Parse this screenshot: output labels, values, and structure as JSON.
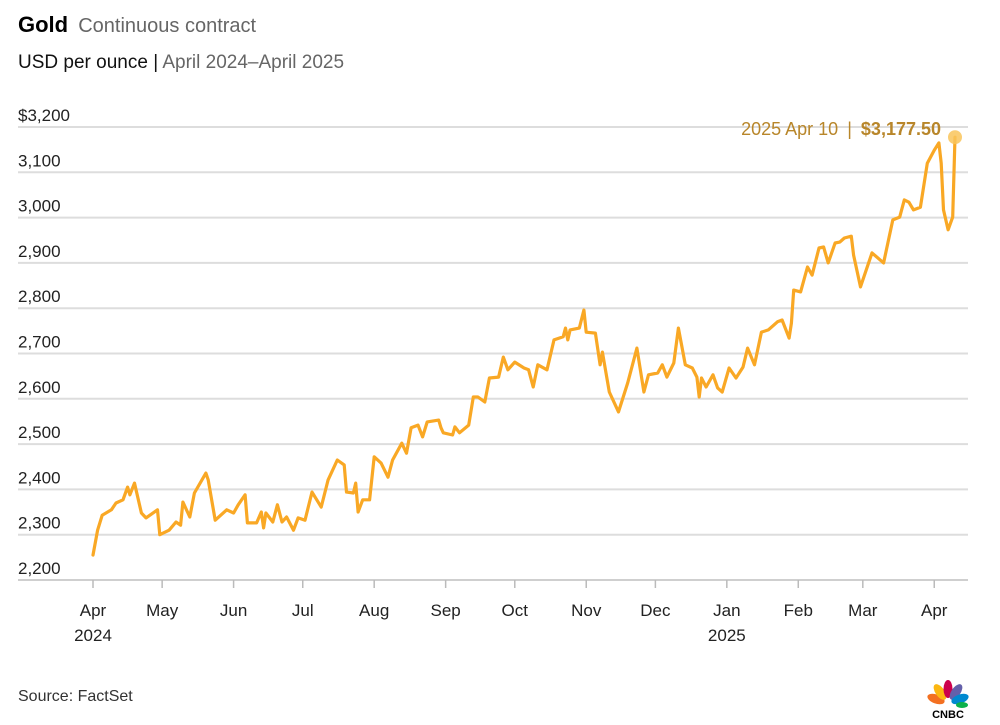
{
  "header": {
    "title": "Gold",
    "subtitle": "Continuous contract",
    "units": "USD per ounce",
    "separator": "|",
    "period": "April 2024–April 2025"
  },
  "source": "Source: FactSet",
  "logo_text": "CNBC",
  "colors": {
    "line": "#F9A825",
    "annotation": "#B8862A",
    "grid": "#DDDDDD",
    "marker": "#F9C45A"
  },
  "chart_data": {
    "type": "line",
    "title": "Gold Continuous contract",
    "ylabel": "USD per ounce",
    "xlabel": "",
    "x_unit": "days since 2024-04-01",
    "xlim": [
      0,
      374
    ],
    "ylim": [
      2200,
      3200
    ],
    "grid": true,
    "y_ticks": [
      {
        "value": 3200,
        "label": "$3,200"
      },
      {
        "value": 3100,
        "label": "3,100"
      },
      {
        "value": 3000,
        "label": "3,000"
      },
      {
        "value": 2900,
        "label": "2,900"
      },
      {
        "value": 2800,
        "label": "2,800"
      },
      {
        "value": 2700,
        "label": "2,700"
      },
      {
        "value": 2600,
        "label": "2,600"
      },
      {
        "value": 2500,
        "label": "2,500"
      },
      {
        "value": 2400,
        "label": "2,400"
      },
      {
        "value": 2300,
        "label": "2,300"
      },
      {
        "value": 2200,
        "label": "2,200"
      }
    ],
    "x_ticks": [
      {
        "day": 0,
        "label": "Apr",
        "year": "2024"
      },
      {
        "day": 30,
        "label": "May"
      },
      {
        "day": 61,
        "label": "Jun"
      },
      {
        "day": 91,
        "label": "Jul"
      },
      {
        "day": 122,
        "label": "Aug"
      },
      {
        "day": 153,
        "label": "Sep"
      },
      {
        "day": 183,
        "label": "Oct"
      },
      {
        "day": 214,
        "label": "Nov"
      },
      {
        "day": 244,
        "label": "Dec"
      },
      {
        "day": 275,
        "label": "Jan",
        "year": "2025"
      },
      {
        "day": 306,
        "label": "Feb"
      },
      {
        "day": 334,
        "label": "Mar"
      },
      {
        "day": 365,
        "label": "Apr"
      }
    ],
    "annotation": {
      "date": "2025 Apr 10",
      "separator": "|",
      "value_label": "$3,177.50",
      "day": 374,
      "value": 3177.5
    },
    "series": [
      {
        "name": "Gold",
        "x": [
          0,
          2,
          4,
          8,
          10,
          13,
          15,
          16,
          18,
          21,
          23,
          28,
          29,
          33,
          36,
          38,
          39,
          42,
          44,
          49,
          50,
          53,
          58,
          61,
          63,
          66,
          67,
          71,
          73,
          74,
          75,
          78,
          80,
          82,
          84,
          87,
          89,
          92,
          95,
          99,
          102,
          106,
          109,
          110,
          113,
          114,
          115,
          117,
          120,
          122,
          125,
          128,
          130,
          134,
          136,
          138,
          141,
          143,
          145,
          150,
          151,
          152,
          156,
          157,
          159,
          163,
          165,
          167,
          170,
          172,
          176,
          178,
          180,
          183,
          187,
          189,
          191,
          193,
          197,
          200,
          204,
          205,
          206,
          207,
          211,
          213,
          214,
          218,
          220,
          221,
          224,
          228,
          232,
          236,
          239,
          241,
          245,
          247,
          249,
          252,
          254,
          257,
          260,
          262,
          263,
          264,
          266,
          269,
          271,
          273,
          276,
          279,
          282,
          284,
          287,
          290,
          293,
          297,
          299,
          302,
          303,
          304,
          307,
          310,
          312,
          315,
          317,
          319,
          322,
          324,
          326,
          329,
          330,
          333,
          338,
          343,
          347,
          350,
          352,
          354,
          356,
          359,
          362,
          365,
          367,
          368,
          369,
          371,
          373,
          374
        ],
        "values": [
          2255,
          2310,
          2343,
          2355,
          2370,
          2377,
          2405,
          2388,
          2414,
          2348,
          2337,
          2355,
          2300,
          2310,
          2328,
          2321,
          2372,
          2339,
          2392,
          2436,
          2421,
          2332,
          2355,
          2348,
          2366,
          2388,
          2326,
          2326,
          2350,
          2315,
          2348,
          2328,
          2366,
          2328,
          2339,
          2310,
          2337,
          2332,
          2394,
          2361,
          2421,
          2465,
          2454,
          2394,
          2392,
          2414,
          2350,
          2377,
          2377,
          2472,
          2458,
          2427,
          2465,
          2502,
          2480,
          2536,
          2542,
          2516,
          2549,
          2553,
          2536,
          2525,
          2520,
          2538,
          2525,
          2542,
          2604,
          2604,
          2593,
          2646,
          2648,
          2692,
          2664,
          2681,
          2668,
          2664,
          2626,
          2675,
          2664,
          2730,
          2737,
          2756,
          2730,
          2752,
          2756,
          2796,
          2747,
          2745,
          2675,
          2703,
          2615,
          2571,
          2635,
          2712,
          2615,
          2653,
          2657,
          2675,
          2648,
          2679,
          2756,
          2675,
          2668,
          2648,
          2604,
          2646,
          2626,
          2653,
          2624,
          2615,
          2668,
          2646,
          2670,
          2712,
          2675,
          2747,
          2752,
          2770,
          2774,
          2734,
          2767,
          2840,
          2836,
          2891,
          2873,
          2933,
          2935,
          2900,
          2944,
          2946,
          2955,
          2959,
          2917,
          2847,
          2922,
          2900,
          2995,
          3001,
          3039,
          3034,
          3017,
          3023,
          3120,
          3149,
          3165,
          3120,
          3017,
          2973,
          3001,
          3177.5
        ]
      }
    ]
  }
}
